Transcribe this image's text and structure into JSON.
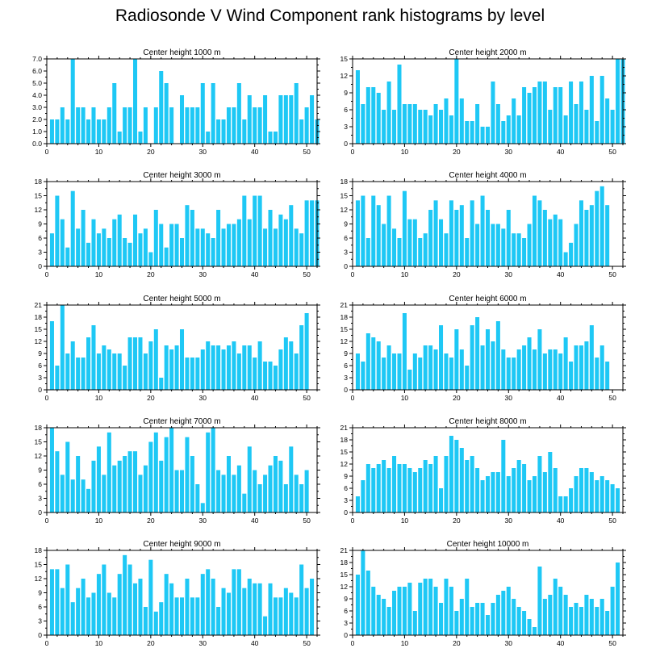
{
  "figure": {
    "title": "Radiosonde V Wind Component rank histograms by level",
    "bar_color": "#1ec8f5"
  },
  "chart_data": [
    {
      "type": "bar",
      "title": "Center height 1000 m",
      "xlim": [
        0,
        52
      ],
      "ylim": [
        0,
        7
      ],
      "xticks": [
        0,
        10,
        20,
        30,
        40,
        50
      ],
      "yticks": [
        "0.0",
        "1.0",
        "2.0",
        "3.0",
        "4.0",
        "5.0",
        "6.0",
        "7.0"
      ],
      "values": [
        2,
        2,
        3,
        2,
        7,
        3,
        3,
        2,
        3,
        2,
        2,
        3,
        5,
        1,
        3,
        3,
        7,
        1,
        3,
        0,
        3,
        6,
        5,
        3,
        0,
        4,
        3,
        3,
        3,
        5,
        1,
        5,
        2,
        2,
        3,
        3,
        5,
        2,
        4,
        3,
        3,
        4,
        1,
        1,
        4,
        4,
        4,
        5,
        2,
        3,
        4,
        2
      ]
    },
    {
      "type": "bar",
      "title": "Center height 2000 m",
      "xlim": [
        0,
        52
      ],
      "ylim": [
        0,
        15
      ],
      "xticks": [
        0,
        10,
        20,
        30,
        40,
        50
      ],
      "yticks": [
        "0",
        "3",
        "6",
        "9",
        "12",
        "15"
      ],
      "values": [
        13,
        7,
        10,
        10,
        9,
        6,
        11,
        6,
        14,
        7,
        7,
        7,
        6,
        6,
        5,
        7,
        6,
        8,
        5,
        15,
        8,
        4,
        4,
        7,
        3,
        3,
        11,
        7,
        4,
        5,
        8,
        5,
        10,
        9,
        10,
        11,
        11,
        6,
        10,
        10,
        5,
        11,
        7,
        11,
        6,
        12,
        4,
        12,
        8,
        6,
        15,
        15
      ]
    },
    {
      "type": "bar",
      "title": "Center height 3000 m",
      "xlim": [
        0,
        52
      ],
      "ylim": [
        0,
        18
      ],
      "xticks": [
        0,
        10,
        20,
        30,
        40,
        50
      ],
      "yticks": [
        "0",
        "3",
        "6",
        "9",
        "12",
        "15",
        "18"
      ],
      "values": [
        7,
        15,
        10,
        4,
        16,
        8,
        12,
        5,
        10,
        7,
        8,
        6,
        10,
        11,
        6,
        5,
        11,
        7,
        8,
        3,
        12,
        9,
        4,
        9,
        9,
        6,
        13,
        12,
        8,
        8,
        7,
        6,
        12,
        8,
        9,
        9,
        10,
        15,
        10,
        15,
        15,
        8,
        12,
        8,
        11,
        10,
        13,
        8,
        7,
        14,
        14,
        14
      ]
    },
    {
      "type": "bar",
      "title": "Center height 4000 m",
      "xlim": [
        0,
        52
      ],
      "ylim": [
        0,
        18
      ],
      "xticks": [
        0,
        10,
        20,
        30,
        40,
        50
      ],
      "yticks": [
        "0",
        "3",
        "6",
        "9",
        "12",
        "15",
        "18"
      ],
      "values": [
        14,
        15,
        6,
        15,
        13,
        9,
        15,
        8,
        6,
        16,
        10,
        10,
        6,
        7,
        12,
        14,
        10,
        7,
        14,
        12,
        13,
        6,
        14,
        9,
        15,
        12,
        9,
        9,
        8,
        12,
        7,
        7,
        6,
        9,
        15,
        14,
        12,
        10,
        11,
        10,
        3,
        5,
        9,
        14,
        12,
        13,
        16,
        17,
        13
      ]
    },
    {
      "type": "bar",
      "title": "Center height 5000 m",
      "xlim": [
        0,
        52
      ],
      "ylim": [
        0,
        21
      ],
      "xticks": [
        0,
        10,
        20,
        30,
        40,
        50
      ],
      "yticks": [
        "0",
        "3",
        "6",
        "9",
        "12",
        "15",
        "18",
        "21"
      ],
      "values": [
        17,
        6,
        21,
        9,
        12,
        8,
        8,
        13,
        16,
        9,
        11,
        10,
        9,
        9,
        6,
        13,
        13,
        13,
        9,
        12,
        15,
        3,
        11,
        10,
        11,
        15,
        8,
        8,
        8,
        10,
        12,
        11,
        11,
        10,
        11,
        12,
        9,
        11,
        11,
        8,
        12,
        7,
        7,
        6,
        10,
        13,
        12,
        9,
        16,
        19
      ]
    },
    {
      "type": "bar",
      "title": "Center height 6000 m",
      "xlim": [
        0,
        52
      ],
      "ylim": [
        0,
        21
      ],
      "xticks": [
        0,
        10,
        20,
        30,
        40,
        50
      ],
      "yticks": [
        "0",
        "3",
        "6",
        "9",
        "12",
        "15",
        "18",
        "21"
      ],
      "values": [
        9,
        7,
        14,
        13,
        12,
        8,
        11,
        9,
        9,
        19,
        5,
        9,
        8,
        11,
        11,
        10,
        16,
        9,
        8,
        15,
        10,
        6,
        16,
        18,
        11,
        15,
        12,
        17,
        10,
        8,
        8,
        10,
        11,
        13,
        10,
        15,
        9,
        10,
        10,
        9,
        13,
        7,
        11,
        11,
        12,
        16,
        8,
        11,
        7
      ]
    },
    {
      "type": "bar",
      "title": "Center height 7000 m",
      "xlim": [
        0,
        52
      ],
      "ylim": [
        0,
        18
      ],
      "xticks": [
        0,
        10,
        20,
        30,
        40,
        50
      ],
      "yticks": [
        "0",
        "3",
        "6",
        "9",
        "12",
        "15",
        "18"
      ],
      "values": [
        18,
        13,
        8,
        15,
        7,
        12,
        7,
        5,
        11,
        14,
        8,
        17,
        10,
        11,
        12,
        13,
        13,
        8,
        10,
        15,
        17,
        11,
        16,
        18,
        9,
        9,
        16,
        12,
        6,
        2,
        17,
        18,
        9,
        8,
        12,
        8,
        10,
        4,
        14,
        9,
        6,
        8,
        10,
        12,
        11,
        6,
        14,
        8,
        6,
        9
      ]
    },
    {
      "type": "bar",
      "title": "Center height 8000 m",
      "xlim": [
        0,
        52
      ],
      "ylim": [
        0,
        21
      ],
      "xticks": [
        0,
        10,
        20,
        30,
        40,
        50
      ],
      "yticks": [
        "0",
        "3",
        "6",
        "9",
        "12",
        "15",
        "18",
        "21"
      ],
      "values": [
        4,
        8,
        12,
        11,
        12,
        13,
        11,
        14,
        12,
        12,
        11,
        10,
        11,
        13,
        12,
        14,
        6,
        14,
        19,
        18,
        16,
        13,
        14,
        11,
        8,
        9,
        10,
        10,
        18,
        9,
        11,
        13,
        12,
        8,
        9,
        14,
        10,
        15,
        11,
        4,
        4,
        6,
        9,
        11,
        11,
        10,
        8,
        9,
        8,
        7,
        6
      ]
    },
    {
      "type": "bar",
      "title": "Center height 9000 m",
      "xlim": [
        0,
        52
      ],
      "ylim": [
        0,
        18
      ],
      "xticks": [
        0,
        10,
        20,
        30,
        40,
        50
      ],
      "yticks": [
        "0",
        "3",
        "6",
        "9",
        "12",
        "15",
        "18"
      ],
      "values": [
        14,
        14,
        10,
        15,
        7,
        10,
        12,
        8,
        9,
        13,
        15,
        9,
        8,
        13,
        17,
        15,
        11,
        12,
        6,
        16,
        5,
        7,
        13,
        11,
        8,
        8,
        12,
        8,
        8,
        13,
        14,
        12,
        6,
        10,
        9,
        14,
        14,
        10,
        12,
        11,
        11,
        4,
        11,
        8,
        8,
        10,
        9,
        8,
        15,
        10,
        12
      ]
    },
    {
      "type": "bar",
      "title": "Center height 10000 m",
      "xlim": [
        0,
        52
      ],
      "ylim": [
        0,
        21
      ],
      "xticks": [
        0,
        10,
        20,
        30,
        40,
        50
      ],
      "yticks": [
        "0",
        "3",
        "6",
        "9",
        "12",
        "15",
        "18",
        "21"
      ],
      "values": [
        15,
        21,
        16,
        12,
        10,
        9,
        7,
        11,
        12,
        12,
        13,
        6,
        13,
        14,
        14,
        12,
        8,
        14,
        12,
        6,
        9,
        14,
        7,
        8,
        8,
        5,
        8,
        10,
        11,
        12,
        9,
        7,
        6,
        4,
        2,
        17,
        9,
        10,
        14,
        12,
        10,
        7,
        8,
        7,
        10,
        9,
        7,
        9,
        6,
        12,
        18
      ]
    }
  ]
}
